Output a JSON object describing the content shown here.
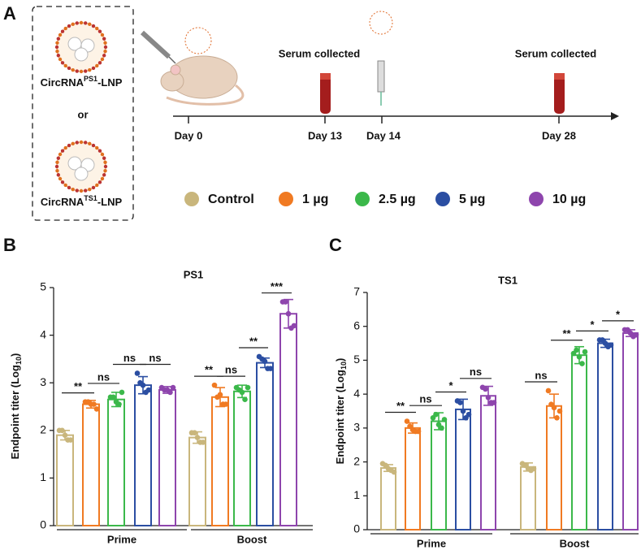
{
  "panel_a": {
    "letter": "A",
    "lnp": [
      {
        "prefix": "CircRNA",
        "sup": "PS1",
        "suffix": "-LNP"
      },
      {
        "prefix": "CircRNA",
        "sup": "TS1",
        "suffix": "-LNP"
      }
    ],
    "or": "or",
    "events": [
      "Serum collected",
      "Serum collected"
    ],
    "days": [
      "Day 0",
      "Day 13",
      "Day 14",
      "Day 28"
    ]
  },
  "chart_data": [
    {
      "type": "bar",
      "letter": "B",
      "title": "PS1",
      "y_label": "Endpoint titer (Log",
      "y_label_sub": "10",
      "y_label_end": ")",
      "categories": [
        "Prime",
        "Boost"
      ],
      "ylim": [
        0,
        5
      ],
      "yticks": [
        0,
        1,
        2,
        3,
        4,
        5
      ],
      "series": [
        {
          "name": "Control",
          "color": "#c9b67c",
          "values": [
            1.9,
            1.85
          ],
          "errors": [
            0.1,
            0.12
          ],
          "points": [
            [
              2.0,
              2.0,
              1.9,
              1.8,
              1.8
            ],
            [
              1.95,
              1.95,
              1.85,
              1.75,
              1.75
            ]
          ]
        },
        {
          "name": "1 µg",
          "color": "#f07a22",
          "values": [
            2.55,
            2.7
          ],
          "errors": [
            0.08,
            0.2
          ],
          "points": [
            [
              2.6,
              2.6,
              2.55,
              2.55,
              2.45
            ],
            [
              2.95,
              2.7,
              2.75,
              2.55,
              2.55
            ]
          ]
        },
        {
          "name": "2.5 µg",
          "color": "#3bb84a",
          "values": [
            2.65,
            2.82
          ],
          "errors": [
            0.15,
            0.13
          ],
          "points": [
            [
              2.7,
              2.7,
              2.6,
              2.55,
              2.8
            ],
            [
              2.9,
              2.85,
              2.8,
              2.65,
              2.9
            ]
          ]
        },
        {
          "name": "5 µg",
          "color": "#2b4ea2",
          "values": [
            2.95,
            3.42
          ],
          "errors": [
            0.18,
            0.1
          ],
          "points": [
            [
              3.2,
              3.0,
              2.95,
              2.8,
              2.85
            ],
            [
              3.55,
              3.5,
              3.45,
              3.3,
              3.3
            ]
          ]
        },
        {
          "name": "10 µg",
          "color": "#8e45ad",
          "values": [
            2.85,
            4.45
          ],
          "errors": [
            0.07,
            0.3
          ],
          "points": [
            [
              2.9,
              2.85,
              2.85,
              2.8,
              2.9
            ],
            [
              4.7,
              4.7,
              4.45,
              4.15,
              4.2
            ]
          ]
        }
      ],
      "significance": [
        [
          "**",
          "ns",
          "ns",
          "ns"
        ],
        [
          "**",
          "ns",
          "**",
          "***"
        ]
      ]
    },
    {
      "type": "bar",
      "letter": "C",
      "title": "TS1",
      "y_label": "Endpoint titer (Log",
      "y_label_sub": "10",
      "y_label_end": ")",
      "categories": [
        "Prime",
        "Boost"
      ],
      "ylim": [
        0,
        7
      ],
      "yticks": [
        0,
        1,
        2,
        3,
        4,
        5,
        6,
        7
      ],
      "series": [
        {
          "color": "#c9b67c",
          "values": [
            1.82,
            1.85
          ],
          "errors": [
            0.1,
            0.12
          ],
          "points": [
            [
              1.95,
              1.9,
              1.8,
              1.75,
              1.7
            ],
            [
              1.95,
              1.9,
              1.8,
              1.75,
              1.8
            ]
          ]
        },
        {
          "color": "#f07a22",
          "values": [
            3.0,
            3.65
          ],
          "errors": [
            0.15,
            0.35
          ],
          "points": [
            [
              3.2,
              3.05,
              2.95,
              2.9,
              2.9
            ],
            [
              4.1,
              3.7,
              3.6,
              3.3,
              3.5
            ]
          ]
        },
        {
          "color": "#3bb84a",
          "values": [
            3.2,
            5.15
          ],
          "errors": [
            0.25,
            0.25
          ],
          "points": [
            [
              3.3,
              3.4,
              3.1,
              3.0,
              3.25
            ],
            [
              5.2,
              5.3,
              5.1,
              4.9,
              5.25
            ]
          ]
        },
        {
          "color": "#2b4ea2",
          "values": [
            3.55,
            5.5
          ],
          "errors": [
            0.3,
            0.12
          ],
          "points": [
            [
              3.8,
              3.75,
              3.5,
              3.3,
              3.4
            ],
            [
              5.6,
              5.6,
              5.5,
              5.4,
              5.45
            ]
          ]
        },
        {
          "color": "#8e45ad",
          "values": [
            3.95,
            5.8
          ],
          "errors": [
            0.28,
            0.1
          ],
          "points": [
            [
              4.2,
              4.15,
              3.9,
              3.75,
              3.75
            ],
            [
              5.9,
              5.9,
              5.8,
              5.7,
              5.75
            ]
          ]
        }
      ],
      "significance": [
        [
          "**",
          "ns",
          "*",
          "ns"
        ],
        [
          "ns",
          "**",
          "*",
          "*"
        ]
      ]
    }
  ]
}
